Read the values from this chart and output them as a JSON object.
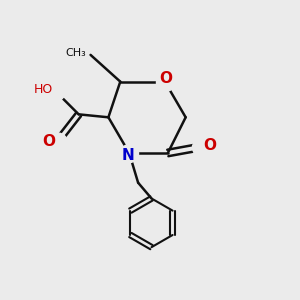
{
  "background_color": "#ebebeb",
  "atom_colors": {
    "O": "#cc0000",
    "N": "#0000cc",
    "C": "#111111",
    "H": "#7a9a9a"
  },
  "bond_color": "#111111",
  "bond_width": 1.8,
  "figsize": [
    3.0,
    3.0
  ],
  "dpi": 100
}
